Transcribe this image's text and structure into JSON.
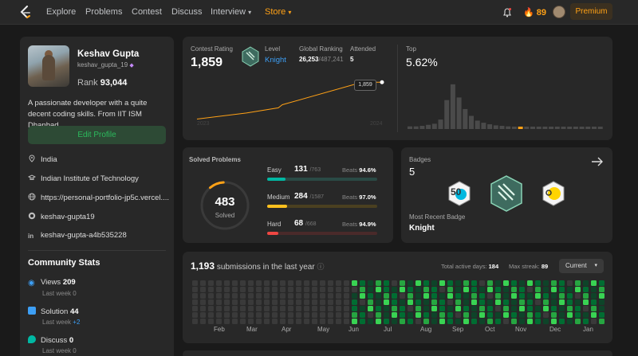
{
  "nav": {
    "items": [
      "Explore",
      "Problems",
      "Contest",
      "Discuss",
      "Interview",
      "Store"
    ],
    "streak_count": "89",
    "premium_label": "Premium"
  },
  "profile": {
    "name": "Keshav Gupta",
    "handle": "keshav_gupta_19",
    "rank_label": "Rank",
    "rank_value": "93,044",
    "bio": "A passionate developer with a quite decent coding skills. From IIT ISM Dhanbad.",
    "edit_label": "Edit Profile",
    "location": "India",
    "institute": "Indian Institute of Technology",
    "website": "https://personal-portfolio-jp5c.vercel....",
    "github": "keshav-gupta19",
    "linkedin": "keshav-gupta-a4b535228"
  },
  "community": {
    "title": "Community Stats",
    "views_label": "Views",
    "views_value": "209",
    "views_sub": "Last week",
    "views_delta": "0",
    "solution_label": "Solution",
    "solution_value": "44",
    "solution_sub": "Last week",
    "solution_delta": "+2",
    "discuss_label": "Discuss",
    "discuss_value": "0",
    "discuss_sub": "Last week",
    "discuss_delta": "0"
  },
  "contest": {
    "rating_label": "Contest Rating",
    "rating_value": "1,859",
    "level_label": "Level",
    "level_value": "Knight",
    "global_label": "Global Ranking",
    "global_value": "26,253",
    "global_total": "/487,241",
    "attended_label": "Attended",
    "attended_value": "5",
    "tooltip_value": "1,859",
    "year_start": "2023",
    "year_end": "2024",
    "top_label": "Top",
    "top_value": "5.62%"
  },
  "chart_data": {
    "type": "line",
    "title": "Contest Rating",
    "series": [
      {
        "values": [
          1500,
          1560,
          1610,
          1640,
          1859,
          1859
        ]
      }
    ],
    "x": [
      "2023",
      "",
      "",
      "",
      "",
      "2024"
    ]
  },
  "distribution": {
    "bars": [
      0.05,
      0.05,
      0.06,
      0.08,
      0.1,
      0.18,
      0.55,
      0.85,
      0.6,
      0.38,
      0.25,
      0.16,
      0.12,
      0.09,
      0.07,
      0.06,
      0.05,
      0.04,
      0.04,
      0.04,
      0.04,
      0.03,
      0.03,
      0.03,
      0.03,
      0.03,
      0.03,
      0.03,
      0.03,
      0.03,
      0.03,
      0.03
    ],
    "highlight_index": 18
  },
  "solved": {
    "title": "Solved Problems",
    "total": "483",
    "total_label": "Solved",
    "easy_label": "Easy",
    "easy_value": "131",
    "easy_total": "/763",
    "easy_beats_label": "Beats",
    "easy_beats": "94.6%",
    "easy_frac": 0.17,
    "medium_label": "Medium",
    "medium_value": "284",
    "medium_total": "/1587",
    "medium_beats_label": "Beats",
    "medium_beats": "97.0%",
    "medium_frac": 0.18,
    "hard_label": "Hard",
    "hard_value": "68",
    "hard_total": "/668",
    "hard_beats_label": "Beats",
    "hard_beats": "94.9%",
    "hard_frac": 0.1,
    "colors": {
      "easy": "#00b8a3",
      "medium": "#ffc01e",
      "hard": "#ef4743"
    }
  },
  "badges": {
    "title": "Badges",
    "count": "5",
    "recent_label": "Most Recent Badge",
    "recent_name": "Knight",
    "badge_left_text": "50"
  },
  "submissions": {
    "count": "1,193",
    "label": "submissions in the last year",
    "active_label": "Total active days:",
    "active_value": "184",
    "streak_label": "Max streak:",
    "streak_value": "89",
    "select_value": "Current",
    "months": [
      "Feb",
      "Mar",
      "Apr",
      "May",
      "Jun",
      "Jul",
      "Aug",
      "Sep",
      "Oct",
      "Nov",
      "Dec",
      "Jan"
    ]
  }
}
